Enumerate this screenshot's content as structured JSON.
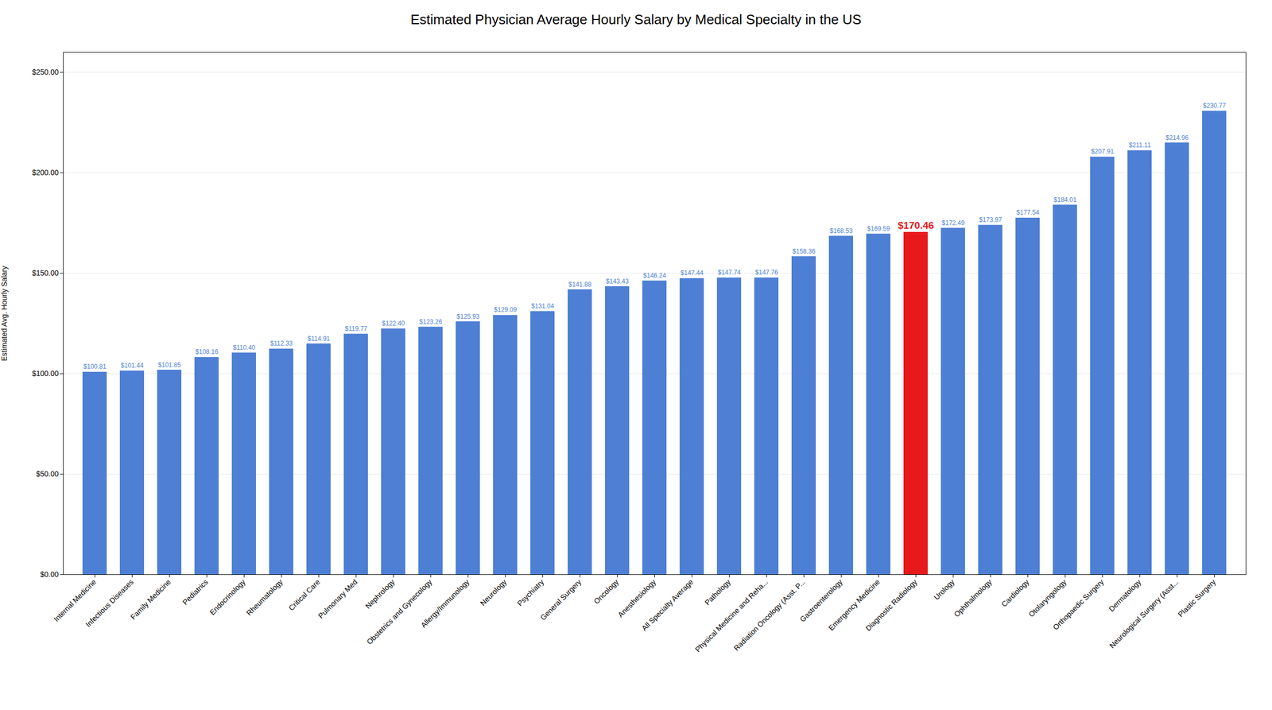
{
  "chart_data": {
    "type": "bar",
    "title": "Estimated Physician Average Hourly Salary by Medical Specialty in the US",
    "ylabel": "Estimated Avg. Hourly Salary",
    "categories": [
      "Internal Medicine",
      "Infectious Diseases",
      "Family Medicine",
      "Pediatrics",
      "Endocrinology",
      "Rheumatology",
      "Critical Care",
      "Pulmonary Med",
      "Nephrology",
      "Obstetrics and Gynecology",
      "Allergy/Immunology",
      "Neurology",
      "Psychiatry",
      "General Surgery",
      "Oncology",
      "Anesthesiology",
      "All Specialty Average",
      "Pathology",
      "Physical Medicine and Reha...",
      "Radiation Oncology (Asst. P...",
      "Gastroenterology",
      "Emergency Medicine",
      "Diagnostic Radiology",
      "Urology",
      "Ophthalmology",
      "Cardiology",
      "Otolaryngology",
      "Orthopaedic Surgery",
      "Dermatology",
      "Neurological Surgery (Asst...",
      "Plastic Surgery"
    ],
    "values": [
      100.81,
      101.44,
      101.85,
      108.16,
      110.4,
      112.33,
      114.91,
      119.77,
      122.4,
      123.26,
      125.93,
      129.09,
      131.04,
      141.88,
      143.43,
      146.24,
      147.44,
      147.74,
      147.76,
      158.36,
      168.53,
      169.59,
      170.46,
      172.49,
      173.97,
      177.54,
      184.01,
      207.91,
      211.11,
      214.96,
      230.77
    ],
    "value_labels": [
      "$100.81",
      "$101.44",
      "$101.85",
      "$108.16",
      "$110.40",
      "$112.33",
      "$114.91",
      "$119.77",
      "$122.40",
      "$123.26",
      "$125.93",
      "$129.09",
      "$131.04",
      "$141.88",
      "$143.43",
      "$146.24",
      "$147.44",
      "$147.74",
      "$147.76",
      "$158.36",
      "$168.53",
      "$169.59",
      "$170.46",
      "$172.49",
      "$173.97",
      "$177.54",
      "$184.01",
      "$207.91",
      "$211.11",
      "$214.96",
      "$230.77"
    ],
    "colors": [
      "#4d7fd4",
      "#4d7fd4",
      "#4d7fd4",
      "#4d7fd4",
      "#4d7fd4",
      "#4d7fd4",
      "#4d7fd4",
      "#4d7fd4",
      "#4d7fd4",
      "#4d7fd4",
      "#4d7fd4",
      "#4d7fd4",
      "#4d7fd4",
      "#4d7fd4",
      "#4d7fd4",
      "#4d7fd4",
      "#4d7fd4",
      "#4d7fd4",
      "#4d7fd4",
      "#4d7fd4",
      "#4d7fd4",
      "#4d7fd4",
      "#e8191a",
      "#4d7fd4",
      "#4d7fd4",
      "#4d7fd4",
      "#4d7fd4",
      "#4d7fd4",
      "#4d7fd4",
      "#4d7fd4",
      "#4d7fd4"
    ],
    "ylim": [
      0,
      260
    ],
    "yticks": [
      {
        "value": 0,
        "label": "$0.00"
      },
      {
        "value": 50,
        "label": "$50.00"
      },
      {
        "value": 100,
        "label": "$100.00"
      },
      {
        "value": 150,
        "label": "$150.00"
      },
      {
        "value": 200,
        "label": "$200.00"
      },
      {
        "value": 250,
        "label": "$250.00"
      }
    ],
    "grid": true,
    "data_labels": true
  }
}
